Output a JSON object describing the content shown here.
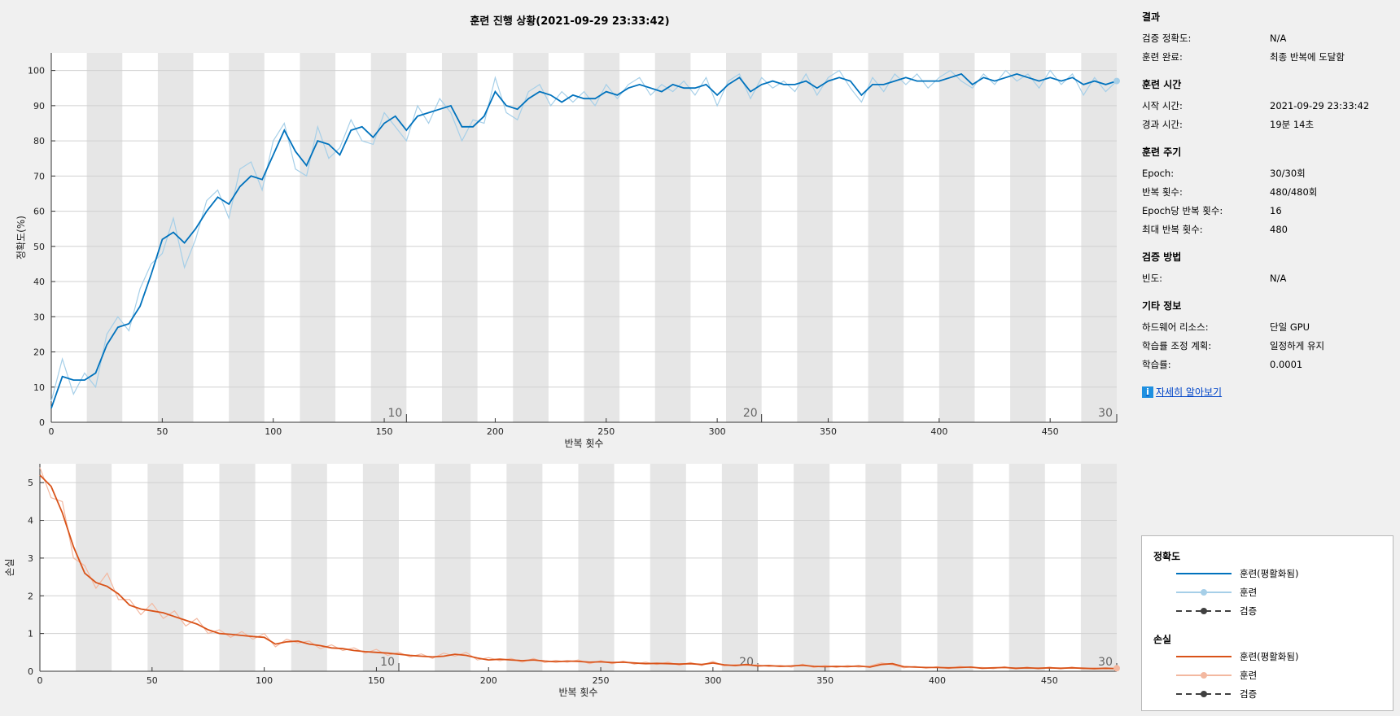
{
  "title": "훈련 진행 상황(2021-09-29 23:33:42)",
  "colors": {
    "acc_smooth": "#0072bd",
    "acc_raw": "#a6cfe8",
    "loss_smooth": "#d95319",
    "loss_raw": "#f3b8a0",
    "validation": "#404040",
    "epoch_band": "#e6e6e6",
    "grid": "#d0d0d0"
  },
  "chart_data": [
    {
      "type": "line",
      "name": "accuracy",
      "title": "",
      "xlabel": "반복 횟수",
      "ylabel": "정확도(%)",
      "xlim": [
        0,
        480
      ],
      "ylim": [
        0,
        105
      ],
      "x_ticks": [
        "0",
        "50",
        "100",
        "150",
        "200",
        "250",
        "300",
        "350",
        "400",
        "450"
      ],
      "y_ticks": [
        "0",
        "10",
        "20",
        "30",
        "40",
        "50",
        "60",
        "70",
        "80",
        "90",
        "100"
      ],
      "epoch_labels": [
        "10",
        "20",
        "30"
      ],
      "grid": true,
      "series": [
        {
          "name": "훈련(평활화됨)",
          "x": [
            0,
            5,
            10,
            15,
            20,
            25,
            30,
            35,
            40,
            45,
            50,
            55,
            60,
            65,
            70,
            75,
            80,
            85,
            90,
            95,
            100,
            105,
            110,
            115,
            120,
            125,
            130,
            135,
            140,
            145,
            150,
            155,
            160,
            165,
            170,
            175,
            180,
            185,
            190,
            195,
            200,
            205,
            210,
            215,
            220,
            225,
            230,
            235,
            240,
            245,
            250,
            255,
            260,
            265,
            270,
            275,
            280,
            285,
            290,
            295,
            300,
            305,
            310,
            315,
            320,
            325,
            330,
            335,
            340,
            345,
            350,
            355,
            360,
            365,
            370,
            375,
            380,
            385,
            390,
            395,
            400,
            405,
            410,
            415,
            420,
            425,
            430,
            435,
            440,
            445,
            450,
            455,
            460,
            465,
            470,
            475,
            480
          ],
          "y": [
            4,
            13,
            12,
            12,
            14,
            22,
            27,
            28,
            33,
            42,
            52,
            54,
            51,
            55,
            60,
            64,
            62,
            67,
            70,
            69,
            76,
            83,
            77,
            73,
            80,
            79,
            76,
            83,
            84,
            81,
            85,
            87,
            83,
            87,
            88,
            89,
            90,
            84,
            84,
            87,
            94,
            90,
            89,
            92,
            94,
            93,
            91,
            93,
            92,
            92,
            94,
            93,
            95,
            96,
            95,
            94,
            96,
            95,
            95,
            96,
            93,
            96,
            98,
            94,
            96,
            97,
            96,
            96,
            97,
            95,
            97,
            98,
            97,
            93,
            96,
            96,
            97,
            98,
            97,
            97,
            97,
            98,
            99,
            96,
            98,
            97,
            98,
            99,
            98,
            97,
            98,
            97,
            98,
            96,
            97,
            96,
            97
          ]
        },
        {
          "name": "훈련",
          "x": [
            0,
            5,
            10,
            15,
            20,
            25,
            30,
            35,
            40,
            45,
            50,
            55,
            60,
            65,
            70,
            75,
            80,
            85,
            90,
            95,
            100,
            105,
            110,
            115,
            120,
            125,
            130,
            135,
            140,
            145,
            150,
            155,
            160,
            165,
            170,
            175,
            180,
            185,
            190,
            195,
            200,
            205,
            210,
            215,
            220,
            225,
            230,
            235,
            240,
            245,
            250,
            255,
            260,
            265,
            270,
            275,
            280,
            285,
            290,
            295,
            300,
            305,
            310,
            315,
            320,
            325,
            330,
            335,
            340,
            345,
            350,
            355,
            360,
            365,
            370,
            375,
            380,
            385,
            390,
            395,
            400,
            405,
            410,
            415,
            420,
            425,
            430,
            435,
            440,
            445,
            450,
            455,
            460,
            465,
            470,
            475,
            480
          ],
          "y": [
            6,
            18,
            8,
            14,
            10,
            25,
            30,
            26,
            38,
            45,
            48,
            58,
            44,
            52,
            63,
            66,
            58,
            72,
            74,
            66,
            80,
            85,
            72,
            70,
            84,
            75,
            78,
            86,
            80,
            79,
            88,
            84,
            80,
            90,
            85,
            92,
            88,
            80,
            86,
            85,
            98,
            88,
            86,
            94,
            96,
            90,
            94,
            91,
            94,
            90,
            96,
            92,
            96,
            98,
            93,
            96,
            94,
            97,
            93,
            98,
            90,
            97,
            99,
            92,
            98,
            95,
            97,
            94,
            99,
            93,
            98,
            100,
            95,
            91,
            98,
            94,
            99,
            96,
            99,
            95,
            98,
            100,
            97,
            95,
            99,
            96,
            100,
            97,
            99,
            95,
            100,
            96,
            99,
            93,
            98,
            94,
            97
          ]
        },
        {
          "name": "검증",
          "x": [],
          "y": []
        }
      ]
    },
    {
      "type": "line",
      "name": "loss",
      "title": "",
      "xlabel": "반복 횟수",
      "ylabel": "손실",
      "xlim": [
        0,
        480
      ],
      "ylim": [
        0,
        5.5
      ],
      "x_ticks": [
        "0",
        "50",
        "100",
        "150",
        "200",
        "250",
        "300",
        "350",
        "400",
        "450"
      ],
      "y_ticks": [
        "0",
        "1",
        "2",
        "3",
        "4",
        "5"
      ],
      "epoch_labels": [
        "10",
        "20",
        "30"
      ],
      "grid": true,
      "series": [
        {
          "name": "훈련(평활화됨)",
          "x": [
            0,
            5,
            10,
            15,
            20,
            25,
            30,
            35,
            40,
            45,
            50,
            55,
            60,
            65,
            70,
            75,
            80,
            85,
            90,
            95,
            100,
            105,
            110,
            115,
            120,
            125,
            130,
            135,
            140,
            145,
            150,
            155,
            160,
            165,
            170,
            175,
            180,
            185,
            190,
            195,
            200,
            205,
            210,
            215,
            220,
            225,
            230,
            235,
            240,
            245,
            250,
            255,
            260,
            265,
            270,
            275,
            280,
            285,
            290,
            295,
            300,
            305,
            310,
            315,
            320,
            325,
            330,
            335,
            340,
            345,
            350,
            355,
            360,
            365,
            370,
            375,
            380,
            385,
            390,
            395,
            400,
            405,
            410,
            415,
            420,
            425,
            430,
            435,
            440,
            445,
            450,
            455,
            460,
            465,
            470,
            475,
            480
          ],
          "y": [
            5.2,
            4.9,
            4.2,
            3.3,
            2.6,
            2.35,
            2.25,
            2.05,
            1.75,
            1.65,
            1.6,
            1.55,
            1.45,
            1.35,
            1.25,
            1.1,
            1.0,
            0.98,
            0.95,
            0.92,
            0.9,
            0.72,
            0.78,
            0.8,
            0.72,
            0.68,
            0.62,
            0.6,
            0.55,
            0.52,
            0.5,
            0.48,
            0.45,
            0.42,
            0.4,
            0.38,
            0.4,
            0.45,
            0.42,
            0.35,
            0.3,
            0.32,
            0.3,
            0.28,
            0.3,
            0.27,
            0.25,
            0.27,
            0.26,
            0.24,
            0.25,
            0.23,
            0.24,
            0.22,
            0.2,
            0.21,
            0.2,
            0.19,
            0.2,
            0.18,
            0.22,
            0.17,
            0.15,
            0.18,
            0.14,
            0.15,
            0.13,
            0.14,
            0.16,
            0.13,
            0.12,
            0.13,
            0.12,
            0.14,
            0.11,
            0.18,
            0.2,
            0.12,
            0.11,
            0.1,
            0.1,
            0.09,
            0.1,
            0.11,
            0.08,
            0.09,
            0.1,
            0.08,
            0.09,
            0.08,
            0.09,
            0.08,
            0.09,
            0.08,
            0.07,
            0.08,
            0.07
          ]
        },
        {
          "name": "훈련",
          "x": [
            0,
            5,
            10,
            15,
            20,
            25,
            30,
            35,
            40,
            45,
            50,
            55,
            60,
            65,
            70,
            75,
            80,
            85,
            90,
            95,
            100,
            105,
            110,
            115,
            120,
            125,
            130,
            135,
            140,
            145,
            150,
            155,
            160,
            165,
            170,
            175,
            180,
            185,
            190,
            195,
            200,
            205,
            210,
            215,
            220,
            225,
            230,
            235,
            240,
            245,
            250,
            255,
            260,
            265,
            270,
            275,
            280,
            285,
            290,
            295,
            300,
            305,
            310,
            315,
            320,
            325,
            330,
            335,
            340,
            345,
            350,
            355,
            360,
            365,
            370,
            375,
            380,
            385,
            390,
            395,
            400,
            405,
            410,
            415,
            420,
            425,
            430,
            435,
            440,
            445,
            450,
            455,
            460,
            465,
            470,
            475,
            480
          ],
          "y": [
            5.4,
            4.6,
            4.5,
            3.0,
            2.8,
            2.2,
            2.6,
            1.9,
            1.9,
            1.5,
            1.8,
            1.4,
            1.6,
            1.2,
            1.4,
            1.0,
            1.1,
            0.9,
            1.05,
            0.85,
            1.0,
            0.65,
            0.85,
            0.75,
            0.8,
            0.6,
            0.7,
            0.55,
            0.62,
            0.48,
            0.58,
            0.42,
            0.5,
            0.38,
            0.46,
            0.34,
            0.48,
            0.4,
            0.5,
            0.3,
            0.36,
            0.28,
            0.34,
            0.24,
            0.34,
            0.23,
            0.29,
            0.24,
            0.3,
            0.2,
            0.28,
            0.2,
            0.27,
            0.19,
            0.24,
            0.18,
            0.24,
            0.16,
            0.23,
            0.15,
            0.26,
            0.14,
            0.18,
            0.15,
            0.17,
            0.12,
            0.16,
            0.11,
            0.19,
            0.1,
            0.15,
            0.1,
            0.15,
            0.11,
            0.14,
            0.22,
            0.17,
            0.09,
            0.13,
            0.08,
            0.12,
            0.07,
            0.13,
            0.09,
            0.1,
            0.07,
            0.12,
            0.06,
            0.11,
            0.06,
            0.11,
            0.06,
            0.11,
            0.06,
            0.09,
            0.06,
            0.08
          ]
        },
        {
          "name": "검증",
          "x": [],
          "y": []
        }
      ]
    }
  ],
  "panel": {
    "sections": [
      {
        "title": "결과",
        "rows": [
          {
            "key": "검증 정확도:",
            "value": "N/A"
          },
          {
            "key": "훈련 완료:",
            "value": "최종 반복에 도달함"
          }
        ]
      },
      {
        "title": "훈련 시간",
        "rows": [
          {
            "key": "시작 시간:",
            "value": "2021-09-29 23:33:42"
          },
          {
            "key": "경과 시간:",
            "value": "19분 14초"
          }
        ]
      },
      {
        "title": "훈련 주기",
        "rows": [
          {
            "key": "Epoch:",
            "value": "30/30회"
          },
          {
            "key": "반복 횟수:",
            "value": "480/480회"
          },
          {
            "key": "Epoch당 반복 횟수:",
            "value": "16"
          },
          {
            "key": "최대 반복 횟수:",
            "value": "480"
          }
        ]
      },
      {
        "title": "검증 방법",
        "rows": [
          {
            "key": "빈도:",
            "value": "N/A"
          }
        ]
      },
      {
        "title": "기타 정보",
        "rows": [
          {
            "key": "하드웨어 리소스:",
            "value": "단일 GPU"
          },
          {
            "key": "학습률 조정 계획:",
            "value": "일정하게 유지"
          },
          {
            "key": "학습률:",
            "value": "0.0001"
          }
        ]
      }
    ],
    "learn_more": "자세히 알아보기"
  },
  "legend": {
    "accuracy_title": "정확도",
    "loss_title": "손실",
    "smoothed": "훈련(평활화됨)",
    "training": "훈련",
    "validation": "검증"
  }
}
